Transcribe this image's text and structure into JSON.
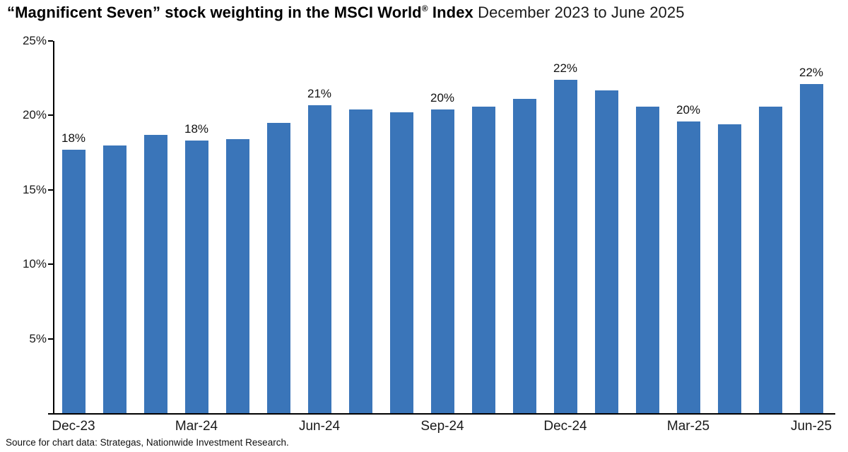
{
  "title": {
    "bold_main": "“Magnificent Seven” stock weighting in the MSCI World",
    "registered_mark": "®",
    "bold_tail": " Index ",
    "subtitle": "December 2023 to June 2025"
  },
  "source_note": "Source for chart data: Strategas, Nationwide Investment Research.",
  "colors": {
    "bar": "#3a75b9",
    "axis": "#000000",
    "text": "#1a1a1a"
  },
  "chart_data": {
    "type": "bar",
    "title": "“Magnificent Seven” stock weighting in the MSCI World® Index",
    "subtitle": "December 2023 to June 2025",
    "categories": [
      "Dec-23",
      "Jan-24",
      "Feb-24",
      "Mar-24",
      "Apr-24",
      "May-24",
      "Jun-24",
      "Jul-24",
      "Aug-24",
      "Sep-24",
      "Oct-24",
      "Nov-24",
      "Dec-24",
      "Jan-25",
      "Feb-25",
      "Mar-25",
      "Apr-25",
      "May-25",
      "Jun-25"
    ],
    "values": [
      17.7,
      18.0,
      18.7,
      18.3,
      18.4,
      19.5,
      20.7,
      20.4,
      20.2,
      20.4,
      20.6,
      21.1,
      22.4,
      21.7,
      20.6,
      19.6,
      19.4,
      20.6,
      22.1
    ],
    "bar_labels": [
      {
        "index": 0,
        "text": "18%"
      },
      {
        "index": 3,
        "text": "18%"
      },
      {
        "index": 6,
        "text": "21%"
      },
      {
        "index": 9,
        "text": "20%"
      },
      {
        "index": 12,
        "text": "22%"
      },
      {
        "index": 15,
        "text": "20%"
      },
      {
        "index": 18,
        "text": "22%"
      }
    ],
    "x_ticks": [
      {
        "index": 0,
        "label": "Dec-23"
      },
      {
        "index": 3,
        "label": "Mar-24"
      },
      {
        "index": 6,
        "label": "Jun-24"
      },
      {
        "index": 9,
        "label": "Sep-24"
      },
      {
        "index": 12,
        "label": "Dec-24"
      },
      {
        "index": 15,
        "label": "Mar-25"
      },
      {
        "index": 18,
        "label": "Jun-25"
      }
    ],
    "y_ticks": [
      {
        "label": "25%",
        "value": 25
      },
      {
        "label": "20%",
        "value": 20
      },
      {
        "label": "15%",
        "value": 15
      },
      {
        "label": "10%",
        "value": 10
      },
      {
        "label": "5%",
        "value": 5
      }
    ],
    "ylim": [
      0,
      25
    ],
    "xlabel": "",
    "ylabel": "",
    "grid": false,
    "legend": false
  }
}
